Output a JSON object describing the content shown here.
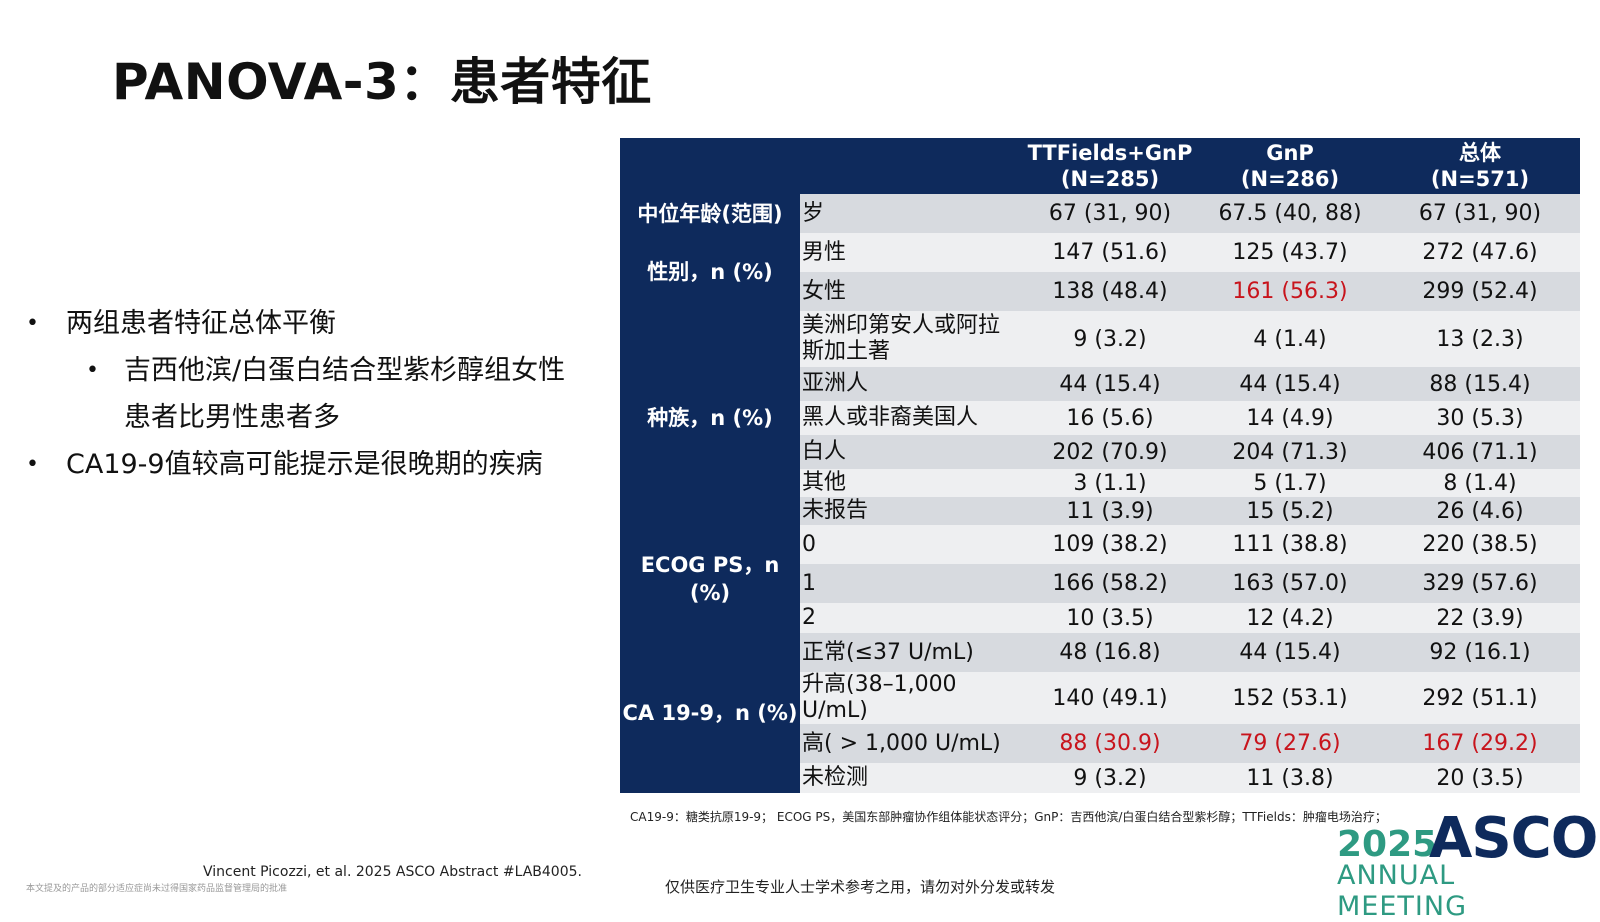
{
  "title": "PANOVA-3：患者特征",
  "bullets": [
    {
      "text": "两组患者特征总体平衡",
      "level": 1
    },
    {
      "text": "吉西他滨/白蛋白结合型紫杉醇组女性患者比男性患者多",
      "level": 2
    },
    {
      "text": "CA19-9值较高可能提示是很晚期的疾病",
      "level": 1
    }
  ],
  "bullet_symbol": "•",
  "table": {
    "headers": [
      "TTFields+GnP\n(N=285)",
      "GnP\n(N=286)",
      "总体\n(N=571)"
    ],
    "categories": {
      "age": "中位年龄(范围)",
      "sex": "性别，n (%)",
      "race": "种族，n (%)",
      "ecog": "ECOG PS，n (%)",
      "ca199": "CA 19-9，n (%)"
    },
    "rows": [
      {
        "sub": "岁",
        "v": [
          "67 (31, 90)",
          "67.5 (40, 88)",
          "67 (31, 90)"
        ]
      },
      {
        "sub": "男性",
        "v": [
          "147 (51.6)",
          "125 (43.7)",
          "272 (47.6)"
        ]
      },
      {
        "sub": "女性",
        "v": [
          "138 (48.4)",
          "161 (56.3)",
          "299 (52.4)"
        ]
      },
      {
        "sub": "美洲印第安人或阿拉斯加土著",
        "v": [
          "9 (3.2)",
          "4 (1.4)",
          "13 (2.3)"
        ]
      },
      {
        "sub": "亚洲人",
        "v": [
          "44 (15.4)",
          "44 (15.4)",
          "88 (15.4)"
        ]
      },
      {
        "sub": "黑人或非裔美国人",
        "v": [
          "16 (5.6)",
          "14 (4.9)",
          "30 (5.3)"
        ]
      },
      {
        "sub": "白人",
        "v": [
          "202 (70.9)",
          "204 (71.3)",
          "406 (71.1)"
        ]
      },
      {
        "sub": "其他",
        "v": [
          "3 (1.1)",
          "5 (1.7)",
          "8 (1.4)"
        ]
      },
      {
        "sub": "未报告",
        "v": [
          "11 (3.9)",
          "15 (5.2)",
          "26 (4.6)"
        ]
      },
      {
        "sub": "0",
        "v": [
          "109 (38.2)",
          "111 (38.8)",
          "220 (38.5)"
        ]
      },
      {
        "sub": "1",
        "v": [
          "166 (58.2)",
          "163 (57.0)",
          "329 (57.6)"
        ]
      },
      {
        "sub": "2",
        "v": [
          "10 (3.5)",
          "12 (4.2)",
          "22 (3.9)"
        ]
      },
      {
        "sub": "正常(≤37 U/mL)",
        "v": [
          "48 (16.8)",
          "44 (15.4)",
          "92 (16.1)"
        ]
      },
      {
        "sub": "升高(38–1,000 U/mL)",
        "v": [
          "140 (49.1)",
          "152 (53.1)",
          "292 (51.1)"
        ]
      },
      {
        "sub": "高( > 1,000 U/mL)",
        "v": [
          "88 (30.9)",
          "79 (27.6)",
          "167 (29.2)"
        ]
      },
      {
        "sub": "未检测",
        "v": [
          "9 (3.2)",
          "11 (3.8)",
          "20 (3.5)"
        ]
      }
    ],
    "highlight_color": "#c8141c",
    "header_color": "#0e2a5c"
  },
  "footnote": "CA19-9：糖类抗原19-9； ECOG PS，美国东部肿瘤协作组体能状态评分；GnP：吉西他滨/白蛋白结合型紫杉醇；TTFields：肿瘤电场治疗；",
  "citation": "Vincent Picozzi, et al. 2025 ASCO Abstract #LAB4005.",
  "disclaimer_left": "本文提及的产品的部分适应症尚未过得国家药品监督管理局的批准",
  "disclaimer_center": "仅供医疗卫生专业人士学术参考之用，请勿对外分发或转发",
  "logo": {
    "year": "2025",
    "brand": "ASCO",
    "meeting": "ANNUAL MEETING"
  }
}
